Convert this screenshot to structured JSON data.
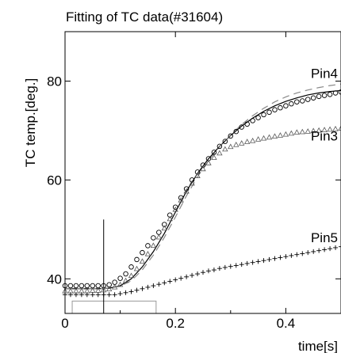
{
  "chart_data": {
    "type": "scatter",
    "title": "Fitting of TC data(#31604)",
    "xlabel": "time[s]",
    "ylabel": "TC temp.[deg.]",
    "xlim": [
      0,
      0.5
    ],
    "ylim": [
      33,
      90
    ],
    "xticks": [
      0,
      0.2,
      0.4
    ],
    "xtick_labels": [
      "0",
      "0.2",
      "0.4"
    ],
    "yticks": [
      40,
      60,
      80
    ],
    "ytick_labels": [
      "40",
      "60",
      "80"
    ],
    "grid": false,
    "vline_x": 0.07,
    "rect": {
      "x0": 0.013,
      "x1": 0.165,
      "y0": 32.5,
      "y1": 35.5
    },
    "series": [
      {
        "name": "Pin4",
        "marker": "circle",
        "x": [
          0.0,
          0.01,
          0.02,
          0.03,
          0.04,
          0.05,
          0.06,
          0.07,
          0.08,
          0.09,
          0.1,
          0.11,
          0.12,
          0.13,
          0.14,
          0.15,
          0.16,
          0.17,
          0.18,
          0.19,
          0.2,
          0.21,
          0.22,
          0.23,
          0.24,
          0.25,
          0.26,
          0.27,
          0.28,
          0.29,
          0.3,
          0.31,
          0.32,
          0.33,
          0.34,
          0.35,
          0.36,
          0.37,
          0.38,
          0.39,
          0.4,
          0.41,
          0.42,
          0.43,
          0.44,
          0.45,
          0.46,
          0.47,
          0.48,
          0.49,
          0.5
        ],
        "y": [
          38.6,
          38.6,
          38.6,
          38.6,
          38.6,
          38.6,
          38.6,
          38.6,
          38.8,
          39.3,
          40.1,
          41.0,
          42.4,
          43.9,
          45.3,
          46.7,
          48.3,
          49.4,
          51.0,
          52.9,
          54.5,
          56.4,
          58.2,
          60.0,
          61.6,
          63.0,
          64.3,
          65.6,
          66.8,
          67.8,
          68.9,
          69.8,
          70.7,
          71.3,
          72.0,
          72.6,
          73.2,
          73.7,
          74.2,
          74.6,
          75.0,
          75.4,
          75.8,
          76.0,
          76.3,
          76.6,
          76.9,
          77.1,
          77.3,
          77.6,
          77.8
        ]
      },
      {
        "name": "Pin3",
        "marker": "triangle",
        "x": [
          0.0,
          0.01,
          0.02,
          0.03,
          0.04,
          0.05,
          0.06,
          0.07,
          0.08,
          0.09,
          0.1,
          0.11,
          0.12,
          0.13,
          0.14,
          0.15,
          0.16,
          0.17,
          0.18,
          0.19,
          0.2,
          0.21,
          0.22,
          0.23,
          0.24,
          0.25,
          0.26,
          0.27,
          0.28,
          0.29,
          0.3,
          0.31,
          0.32,
          0.33,
          0.34,
          0.35,
          0.36,
          0.37,
          0.38,
          0.39,
          0.4,
          0.41,
          0.42,
          0.43,
          0.44,
          0.45,
          0.46,
          0.47,
          0.48,
          0.49,
          0.5
        ],
        "y": [
          37.5,
          37.5,
          37.5,
          37.5,
          37.5,
          37.6,
          37.6,
          37.7,
          37.9,
          38.3,
          38.8,
          39.6,
          40.6,
          42.0,
          43.5,
          45.0,
          46.7,
          48.4,
          50.2,
          52.1,
          54.0,
          55.9,
          57.7,
          59.3,
          60.8,
          62.2,
          63.4,
          64.5,
          65.4,
          66.2,
          66.7,
          67.1,
          67.4,
          67.7,
          67.9,
          68.2,
          68.4,
          68.6,
          68.8,
          69.0,
          69.2,
          69.4,
          69.6,
          69.7,
          69.8,
          69.9,
          70.0,
          70.1,
          70.2,
          70.3,
          70.4
        ]
      },
      {
        "name": "Pin5",
        "marker": "plus",
        "x": [
          0.0,
          0.01,
          0.02,
          0.03,
          0.04,
          0.05,
          0.06,
          0.07,
          0.08,
          0.09,
          0.1,
          0.11,
          0.12,
          0.13,
          0.14,
          0.15,
          0.16,
          0.17,
          0.18,
          0.19,
          0.2,
          0.21,
          0.22,
          0.23,
          0.24,
          0.25,
          0.26,
          0.27,
          0.28,
          0.29,
          0.3,
          0.31,
          0.32,
          0.33,
          0.34,
          0.35,
          0.36,
          0.37,
          0.38,
          0.39,
          0.4,
          0.41,
          0.42,
          0.43,
          0.44,
          0.45,
          0.46,
          0.47,
          0.48,
          0.49,
          0.5
        ],
        "y": [
          36.8,
          36.8,
          36.8,
          36.8,
          36.8,
          36.8,
          36.8,
          36.8,
          36.8,
          36.8,
          37.0,
          37.2,
          37.4,
          37.7,
          38.0,
          38.3,
          38.6,
          38.9,
          39.2,
          39.5,
          39.8,
          40.1,
          40.4,
          40.7,
          41.0,
          41.3,
          41.6,
          41.8,
          42.1,
          42.3,
          42.5,
          42.7,
          42.9,
          43.1,
          43.3,
          43.5,
          43.7,
          43.9,
          44.1,
          44.3,
          44.5,
          44.7,
          44.9,
          45.1,
          45.3,
          45.5,
          45.7,
          45.9,
          46.1,
          46.3,
          46.5
        ]
      }
    ],
    "fits": [
      {
        "style": "solid",
        "x": [
          0.0,
          0.02,
          0.04,
          0.06,
          0.08,
          0.1,
          0.12,
          0.14,
          0.16,
          0.18,
          0.2,
          0.22,
          0.24,
          0.26,
          0.28,
          0.3,
          0.32,
          0.34,
          0.36,
          0.38,
          0.4,
          0.42,
          0.44,
          0.46,
          0.48,
          0.5
        ],
        "y": [
          38.0,
          38.0,
          38.0,
          38.0,
          38.1,
          38.6,
          40.0,
          42.4,
          45.5,
          49.2,
          53.5,
          57.7,
          61.3,
          64.3,
          66.8,
          69.0,
          70.9,
          72.5,
          73.9,
          75.0,
          75.9,
          76.6,
          77.2,
          77.6,
          77.9,
          78.1
        ]
      },
      {
        "style": "dashed",
        "x": [
          0.0,
          0.02,
          0.04,
          0.06,
          0.08,
          0.1,
          0.12,
          0.14,
          0.16,
          0.18,
          0.2,
          0.22,
          0.24,
          0.26,
          0.28,
          0.3,
          0.32,
          0.34,
          0.36,
          0.38,
          0.4,
          0.42,
          0.44,
          0.46,
          0.48,
          0.5
        ],
        "y": [
          38.0,
          38.0,
          38.0,
          38.0,
          38.1,
          38.5,
          39.6,
          41.8,
          44.8,
          48.4,
          52.5,
          56.8,
          60.6,
          63.9,
          66.7,
          69.1,
          71.2,
          73.0,
          74.5,
          75.8,
          76.8,
          77.6,
          78.2,
          78.7,
          79.1,
          79.4
        ]
      }
    ],
    "annotations": [
      {
        "text": "Pin4",
        "x": 0.5,
        "y": 80.6
      },
      {
        "text": "Pin3",
        "x": 0.5,
        "y": 68.0
      },
      {
        "text": "Pin5",
        "x": 0.5,
        "y": 47.4
      }
    ]
  }
}
